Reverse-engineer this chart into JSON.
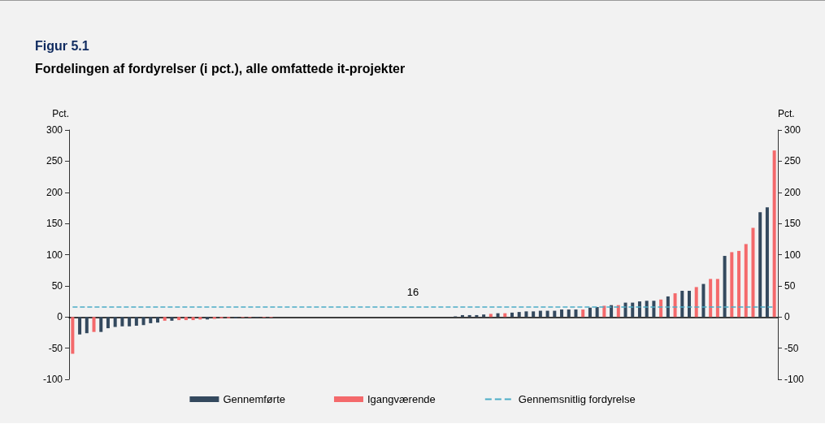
{
  "chart_data": {
    "type": "bar",
    "title": "Figur 5.1",
    "subtitle": "Fordelingen af fordyrelser (i pct.), alle omfattede it-projekter",
    "ylabel": "Pct.",
    "y2label": "Pct.",
    "categories": [
      null,
      null,
      null,
      null,
      null,
      null,
      null,
      null,
      null,
      null,
      null,
      null,
      null,
      null,
      null,
      null,
      null,
      null,
      null,
      null,
      null,
      null,
      null,
      null,
      null,
      null,
      null,
      null,
      null,
      null,
      null,
      null,
      null,
      null,
      null,
      null,
      null,
      null,
      null,
      null,
      null,
      null,
      null,
      null,
      null,
      null,
      null,
      null,
      null,
      null,
      null,
      null,
      null,
      null,
      null,
      null,
      null,
      null,
      null,
      null,
      null,
      null,
      null,
      null,
      null,
      null,
      null,
      null,
      null,
      null,
      null,
      null,
      null,
      null,
      null,
      null,
      null,
      null,
      null,
      null,
      null,
      null,
      null,
      null,
      null,
      null,
      null,
      null,
      null,
      null,
      null,
      null,
      null,
      null,
      null,
      null,
      null,
      null,
      null,
      null
    ],
    "series": [
      {
        "name": "Gennemførte",
        "color": "#34495e",
        "values": [
          null,
          -28,
          -26,
          null,
          -24,
          -18,
          -16,
          -15,
          -15,
          -14,
          -13,
          -10,
          -9,
          null,
          -6,
          null,
          null,
          null,
          null,
          -4,
          null,
          null,
          null,
          -2,
          null,
          null,
          -1,
          null,
          null,
          null,
          null,
          null,
          null,
          null,
          null,
          null,
          null,
          null,
          null,
          null,
          null,
          null,
          null,
          null,
          null,
          null,
          null,
          null,
          null,
          null,
          null,
          null,
          null,
          null,
          1,
          3,
          3,
          3,
          4,
          null,
          6,
          null,
          7,
          8,
          9,
          9,
          10,
          10,
          10,
          12,
          12,
          12,
          null,
          15,
          16,
          null,
          19,
          null,
          23,
          23,
          25,
          26,
          26,
          null,
          33,
          null,
          42,
          42,
          null,
          53,
          null,
          null,
          98,
          null,
          null,
          null,
          null,
          168,
          176,
          null
        ]
      },
      {
        "name": "Igangværende",
        "color": "#f4696b",
        "values": [
          -59,
          null,
          null,
          -24,
          null,
          null,
          null,
          null,
          null,
          null,
          null,
          null,
          null,
          -6,
          null,
          -5,
          -5,
          -5,
          -4,
          null,
          -3,
          -2,
          -2,
          null,
          -1,
          -1,
          null,
          -1,
          -1,
          null,
          null,
          null,
          null,
          null,
          null,
          null,
          null,
          null,
          null,
          null,
          null,
          null,
          null,
          null,
          null,
          null,
          null,
          null,
          null,
          null,
          null,
          null,
          null,
          null,
          null,
          null,
          null,
          null,
          null,
          5,
          null,
          6,
          null,
          null,
          null,
          null,
          null,
          null,
          null,
          null,
          null,
          null,
          12,
          null,
          null,
          18,
          null,
          19,
          null,
          null,
          null,
          null,
          null,
          28,
          null,
          38,
          null,
          null,
          48,
          null,
          61,
          61,
          null,
          104,
          106,
          117,
          143,
          null,
          null,
          267
        ]
      },
      {
        "name": "Gennemsnitlig fordyrelse",
        "type": "line",
        "color": "#4bacc6",
        "line_style": "dashed",
        "marker": "none",
        "values": [
          16,
          16,
          16,
          16,
          16,
          16,
          16,
          16,
          16,
          16,
          16,
          16,
          16,
          16,
          16,
          16,
          16,
          16,
          16,
          16,
          16,
          16,
          16,
          16,
          16,
          16,
          16,
          16,
          16,
          16,
          16,
          16,
          16,
          16,
          16,
          16,
          16,
          16,
          16,
          16,
          16,
          16,
          16,
          16,
          16,
          16,
          16,
          16,
          16,
          16,
          16,
          16,
          16,
          16,
          16,
          16,
          16,
          16,
          16,
          16,
          16,
          16,
          16,
          16,
          16,
          16,
          16,
          16,
          16,
          16,
          16,
          16,
          16,
          16,
          16,
          16,
          16,
          16,
          16,
          16,
          16,
          16,
          16,
          16,
          16,
          16,
          16,
          16,
          16,
          16,
          16,
          16,
          16,
          16,
          16,
          16,
          16,
          16,
          16,
          16
        ]
      }
    ],
    "annotations": [
      {
        "text": "16",
        "y": 16
      }
    ],
    "ylim": [
      -100,
      300
    ],
    "yticks": [
      -100,
      -50,
      0,
      50,
      100,
      150,
      200,
      250,
      300
    ],
    "y2lim": [
      -100,
      300
    ],
    "y2ticks": [
      -100,
      -50,
      0,
      50,
      100,
      150,
      200,
      250,
      300
    ],
    "legend": "bottom"
  }
}
